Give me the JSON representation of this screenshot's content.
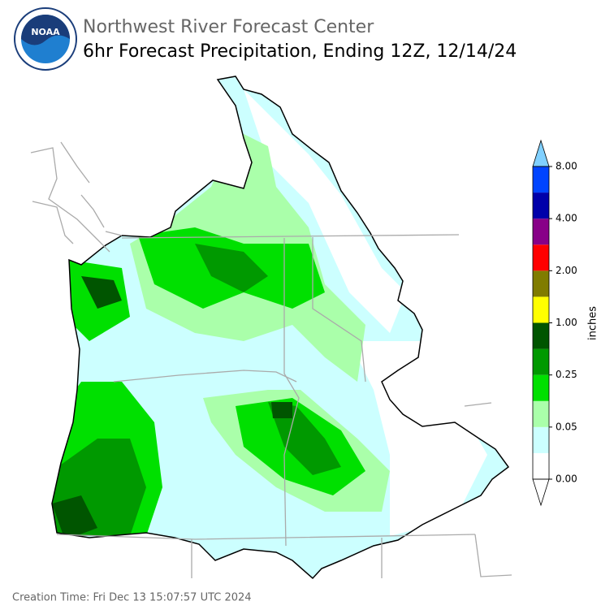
{
  "header": {
    "title": "Northwest River Forecast Center",
    "subtitle": "6hr Forecast Precipitation, Ending 12Z, 12/14/24",
    "logo": "NOAA"
  },
  "legend": {
    "unit": "inches",
    "labels": [
      "0.00",
      "0.05",
      "0.25",
      "1.00",
      "2.00",
      "4.00",
      "8.00"
    ],
    "colors": [
      "#ffffff",
      "#ccffff",
      "#aaffaa",
      "#00e000",
      "#009900",
      "#005500",
      "#ffff00",
      "#807c00",
      "#ff0000",
      "#880088",
      "#0000aa",
      "#0044ff"
    ],
    "over_color": "#80d0ff"
  },
  "footer": {
    "creation": "Creation Time: Fri Dec 13 15:07:57 UTC 2024"
  }
}
